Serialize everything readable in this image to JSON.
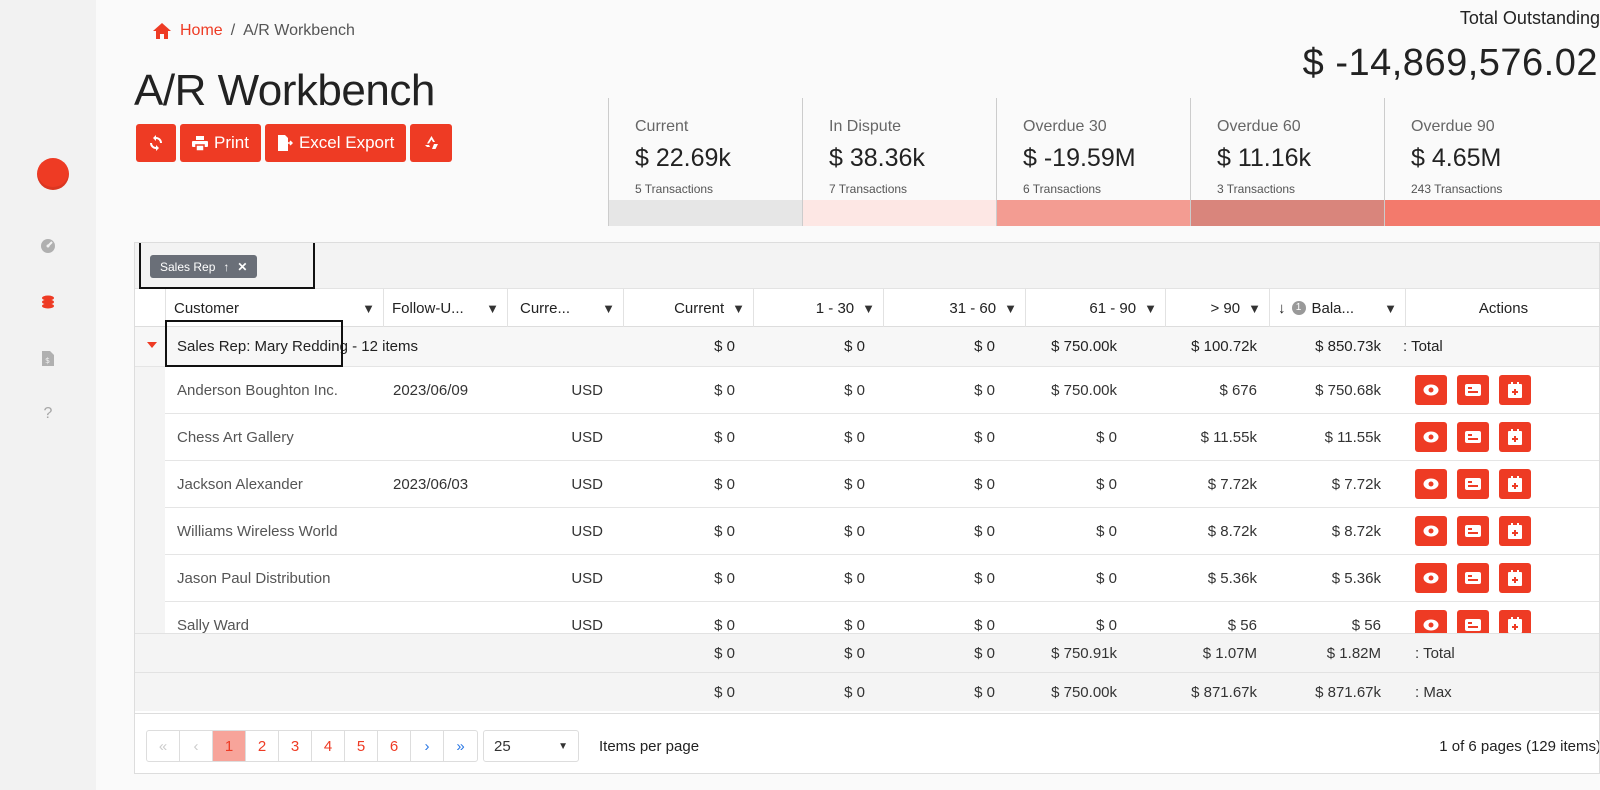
{
  "sidebar": {
    "items": [
      {
        "icon": "dashboard-icon",
        "active": false
      },
      {
        "icon": "coins-icon",
        "active": true
      },
      {
        "icon": "invoice-icon",
        "active": false
      },
      {
        "icon": "help-icon",
        "active": false
      }
    ]
  },
  "breadcrumb": {
    "home": "Home",
    "separator": "/",
    "current": "A/R Workbench"
  },
  "page_title": "A/R Workbench",
  "toolbar": {
    "print": "Print",
    "excel": "Excel Export"
  },
  "total": {
    "label": "Total Outstanding",
    "value": "$ -14,869,576.02"
  },
  "summary": [
    {
      "label": "Current",
      "value": "$ 22.69k",
      "transactions": "5 Transactions",
      "color": "#e6e6e6"
    },
    {
      "label": "In Dispute",
      "value": "$ 38.36k",
      "transactions": "7 Transactions",
      "color": "#fde7e4"
    },
    {
      "label": "Overdue 30",
      "value": "$ -19.59M",
      "transactions": "6 Transactions",
      "color": "#f39c92"
    },
    {
      "label": "Overdue 60",
      "value": "$ 11.16k",
      "transactions": "3 Transactions",
      "color": "#d9857c"
    },
    {
      "label": "Overdue 90",
      "value": "$ 4.65M",
      "transactions": "243 Transactions",
      "color": "#f37a6c"
    }
  ],
  "grid": {
    "group_chip": "Sales Rep",
    "columns": {
      "customer": "Customer",
      "followup": "Follow-U...",
      "currency": "Curre...",
      "current": "Current",
      "d1_30": "1 - 30",
      "d31_60": "31 - 60",
      "d61_90": "61 - 90",
      "d90": "> 90",
      "balance": "Bala...",
      "balance_sort_index": "1",
      "actions": "Actions"
    },
    "group": {
      "label": "Sales Rep: Mary Redding",
      "count": "- 12 items",
      "current": "$ 0",
      "d1_30": "$ 0",
      "d31_60": "$ 0",
      "d61_90": "$ 750.00k",
      "d90": "$ 100.72k",
      "balance": "$ 850.73k",
      "agg": ": Total"
    },
    "rows": [
      {
        "customer": "Anderson Boughton Inc.",
        "followup": "2023/06/09",
        "currency": "USD",
        "current": "$ 0",
        "d1_30": "$ 0",
        "d31_60": "$ 0",
        "d61_90": "$ 750.00k",
        "d90": "$ 676",
        "balance": "$ 750.68k"
      },
      {
        "customer": "Chess Art Gallery",
        "followup": "",
        "currency": "USD",
        "current": "$ 0",
        "d1_30": "$ 0",
        "d31_60": "$ 0",
        "d61_90": "$ 0",
        "d90": "$ 11.55k",
        "balance": "$ 11.55k"
      },
      {
        "customer": "Jackson Alexander",
        "followup": "2023/06/03",
        "currency": "USD",
        "current": "$ 0",
        "d1_30": "$ 0",
        "d31_60": "$ 0",
        "d61_90": "$ 0",
        "d90": "$ 7.72k",
        "balance": "$ 7.72k"
      },
      {
        "customer": "Williams Wireless World",
        "followup": "",
        "currency": "USD",
        "current": "$ 0",
        "d1_30": "$ 0",
        "d31_60": "$ 0",
        "d61_90": "$ 0",
        "d90": "$ 8.72k",
        "balance": "$ 8.72k"
      },
      {
        "customer": "Jason Paul Distribution",
        "followup": "",
        "currency": "USD",
        "current": "$ 0",
        "d1_30": "$ 0",
        "d31_60": "$ 0",
        "d61_90": "$ 0",
        "d90": "$ 5.36k",
        "balance": "$ 5.36k"
      },
      {
        "customer": "Sally Ward",
        "followup": "",
        "currency": "USD",
        "current": "$ 0",
        "d1_30": "$ 0",
        "d31_60": "$ 0",
        "d61_90": "$ 0",
        "d90": "$ 56",
        "balance": "$ 56"
      }
    ],
    "footer_total": {
      "current": "$ 0",
      "d1_30": "$ 0",
      "d31_60": "$ 0",
      "d61_90": "$ 750.91k",
      "d90": "$ 1.07M",
      "balance": "$ 1.82M",
      "agg": ": Total"
    },
    "footer_max": {
      "current": "$ 0",
      "d1_30": "$ 0",
      "d31_60": "$ 0",
      "d61_90": "$ 750.00k",
      "d90": "$ 871.67k",
      "balance": "$ 871.67k",
      "agg": ": Max"
    }
  },
  "pager": {
    "pages": [
      "1",
      "2",
      "3",
      "4",
      "5",
      "6"
    ],
    "selected_page": "1",
    "page_size": "25",
    "items_per_page": "Items per page",
    "info": "1 of 6 pages (129 items)"
  },
  "colors": {
    "accent": "#ee3b24"
  }
}
